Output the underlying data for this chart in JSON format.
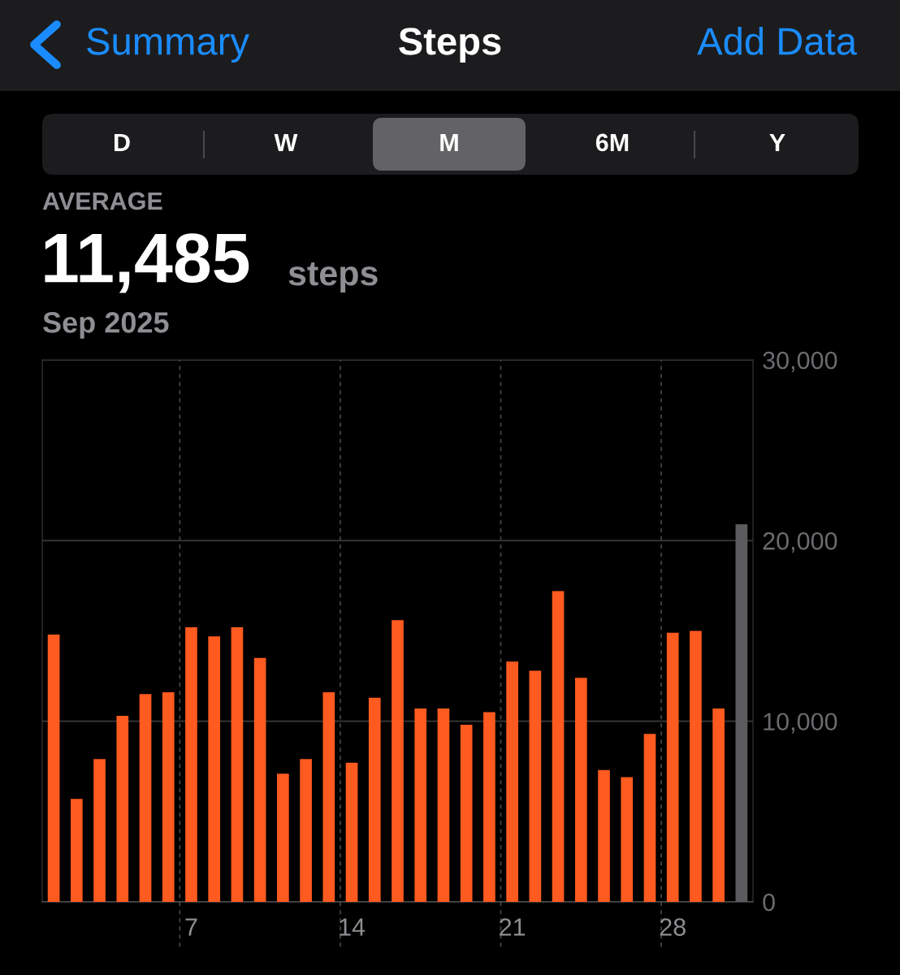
{
  "chart_data": {
    "type": "bar",
    "title": "Steps",
    "annotations": [
      "Summary",
      "Add Data",
      "D",
      "W",
      "M",
      "6M",
      "Y",
      "AVERAGE",
      "11,485",
      "steps",
      "Sep 2025"
    ],
    "categories": [
      null,
      null,
      null,
      null,
      null,
      null,
      "7",
      null,
      null,
      null,
      null,
      null,
      null,
      "14",
      null,
      null,
      null,
      null,
      null,
      null,
      "21",
      null,
      null,
      null,
      null,
      null,
      null,
      "28",
      null,
      null,
      null
    ],
    "values": [
      14800,
      5700,
      7900,
      10300,
      11500,
      11600,
      15200,
      14700,
      15200,
      13500,
      7100,
      7900,
      11600,
      7700,
      11300,
      15600,
      10700,
      10700,
      9800,
      10500,
      13300,
      12800,
      17200,
      12400,
      7300,
      6900,
      9300,
      14900,
      15000,
      10700,
      20900
    ],
    "colors": [
      "#ff5a1f",
      "#ff5a1f",
      "#ff5a1f",
      "#ff5a1f",
      "#ff5a1f",
      "#ff5a1f",
      "#ff5a1f",
      "#ff5a1f",
      "#ff5a1f",
      "#ff5a1f",
      "#ff5a1f",
      "#ff5a1f",
      "#ff5a1f",
      "#ff5a1f",
      "#ff5a1f",
      "#ff5a1f",
      "#ff5a1f",
      "#ff5a1f",
      "#ff5a1f",
      "#ff5a1f",
      "#ff5a1f",
      "#ff5a1f",
      "#ff5a1f",
      "#ff5a1f",
      "#ff5a1f",
      "#ff5a1f",
      "#ff5a1f",
      "#ff5a1f",
      "#ff5a1f",
      "#ff5a1f",
      "#5c5c5e"
    ],
    "ylim": [
      0,
      30000
    ],
    "yticks": [
      {
        "value": 0,
        "label": "0"
      },
      {
        "value": 10000,
        "label": "10,000"
      },
      {
        "value": 20000,
        "label": "20,000"
      },
      {
        "value": 30000,
        "label": "30,000"
      }
    ],
    "grid": "y"
  }
}
